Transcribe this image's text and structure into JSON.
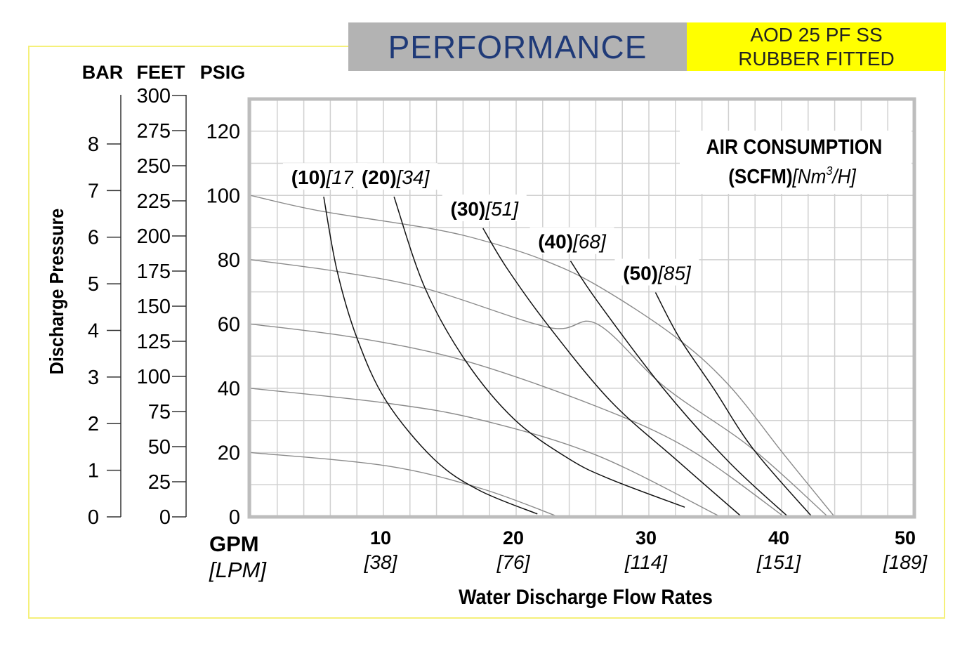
{
  "header": {
    "title": "PERFORMANCE",
    "model_line1": "AOD 25 PF SS",
    "model_line2": "RUBBER FITTED",
    "title_color": "#1f3a78",
    "model_bg": "#ffff00",
    "title_bg": "#b3b3b3"
  },
  "chart_data": {
    "type": "line",
    "title": "PERFORMANCE",
    "xlabel": "Water Discharge Flow Rates",
    "ylabel": "Discharge Pressure",
    "x_unit_primary": "GPM",
    "x_unit_secondary": "[LPM]",
    "xlim": [
      0,
      50
    ],
    "ylim": [
      0,
      130
    ],
    "grid": true,
    "x_ticks": [
      {
        "value": 10,
        "label": "10",
        "sub": "[38]"
      },
      {
        "value": 20,
        "label": "20",
        "sub": "[76]"
      },
      {
        "value": 30,
        "label": "30",
        "sub": "[114]"
      },
      {
        "value": 40,
        "label": "40",
        "sub": "[151]"
      },
      {
        "value": 50,
        "label": "50",
        "sub": "[189]"
      }
    ],
    "y_axes": [
      {
        "name": "BAR",
        "ticks": [
          0,
          1,
          2,
          3,
          4,
          5,
          6,
          7,
          8
        ],
        "psi_per_unit": 14.5038
      },
      {
        "name": "FEET",
        "ticks": [
          0,
          25,
          50,
          75,
          100,
          125,
          150,
          175,
          200,
          225,
          250,
          275,
          300
        ],
        "psi_per_unit": 0.4333
      },
      {
        "name": "PSIG",
        "ticks": [
          0,
          20,
          40,
          60,
          80,
          100,
          120
        ],
        "psi_per_unit": 1
      }
    ],
    "legend_title": "AIR CONSUMPTION",
    "legend_units_bold": "(SCFM)",
    "legend_units_italic_pre": "[Nm",
    "legend_units_sup": "3",
    "legend_units_italic_post": "/H]",
    "pressure_curves": [
      {
        "name": "100 psi",
        "points": [
          [
            0,
            100
          ],
          [
            5.2,
            95.2
          ],
          [
            13.7,
            89.6
          ],
          [
            18,
            85.4
          ],
          [
            22,
            80
          ],
          [
            26.1,
            72
          ],
          [
            31.9,
            56.3
          ],
          [
            36,
            41.1
          ],
          [
            40.2,
            19.3
          ],
          [
            44,
            0
          ]
        ]
      },
      {
        "name": "80 psi",
        "points": [
          [
            0,
            80
          ],
          [
            6.6,
            76.3
          ],
          [
            13.3,
            70.9
          ],
          [
            22.5,
            58.9
          ],
          [
            26.1,
            60
          ],
          [
            31.2,
            40.4
          ],
          [
            37.7,
            21.5
          ],
          [
            43.5,
            0
          ]
        ]
      },
      {
        "name": "60 psi",
        "points": [
          [
            0,
            60
          ],
          [
            8,
            55.7
          ],
          [
            16.2,
            48.5
          ],
          [
            26.1,
            34.3
          ],
          [
            33.1,
            20.9
          ],
          [
            40.2,
            0
          ]
        ]
      },
      {
        "name": "40 psi",
        "points": [
          [
            0,
            40
          ],
          [
            10.2,
            35.4
          ],
          [
            17.3,
            30.2
          ],
          [
            26.1,
            19.1
          ],
          [
            35.4,
            0
          ]
        ]
      },
      {
        "name": "20 psi",
        "points": [
          [
            0,
            20
          ],
          [
            10.2,
            15.9
          ],
          [
            17.3,
            8.9
          ],
          [
            23.2,
            0
          ]
        ]
      }
    ],
    "air_curves": [
      {
        "scfm": "(10)",
        "nm3h": "[17]",
        "points": [
          [
            5.5,
            99.6
          ],
          [
            6.5,
            76.7
          ],
          [
            8.0,
            55.7
          ],
          [
            10.2,
            36.1
          ],
          [
            13.8,
            18
          ],
          [
            17.2,
            8.3
          ],
          [
            21.6,
            0.9
          ]
        ]
      },
      {
        "scfm": "(20)",
        "nm3h": "[34]",
        "points": [
          [
            10.8,
            99.6
          ],
          [
            13.1,
            71.5
          ],
          [
            16.2,
            48.5
          ],
          [
            19.9,
            30.2
          ],
          [
            24,
            18
          ],
          [
            27.1,
            11.7
          ],
          [
            32.7,
            3
          ]
        ]
      },
      {
        "scfm": "(30)",
        "nm3h": "[51]",
        "points": [
          [
            17.5,
            89.8
          ],
          [
            19.3,
            77.4
          ],
          [
            22.4,
            59.6
          ],
          [
            27.1,
            36.1
          ],
          [
            32,
            18
          ],
          [
            37,
            0
          ]
        ]
      },
      {
        "scfm": "(40)",
        "nm3h": "[68]",
        "points": [
          [
            24.1,
            79.6
          ],
          [
            26.1,
            67.2
          ],
          [
            31,
            40.4
          ],
          [
            36,
            17.2
          ],
          [
            40.5,
            0
          ]
        ]
      },
      {
        "scfm": "(50)",
        "nm3h": "[85]",
        "points": [
          [
            30.5,
            69.8
          ],
          [
            32.3,
            55.7
          ],
          [
            34.9,
            39.8
          ],
          [
            37.9,
            20.9
          ],
          [
            42.3,
            0
          ]
        ]
      }
    ]
  }
}
